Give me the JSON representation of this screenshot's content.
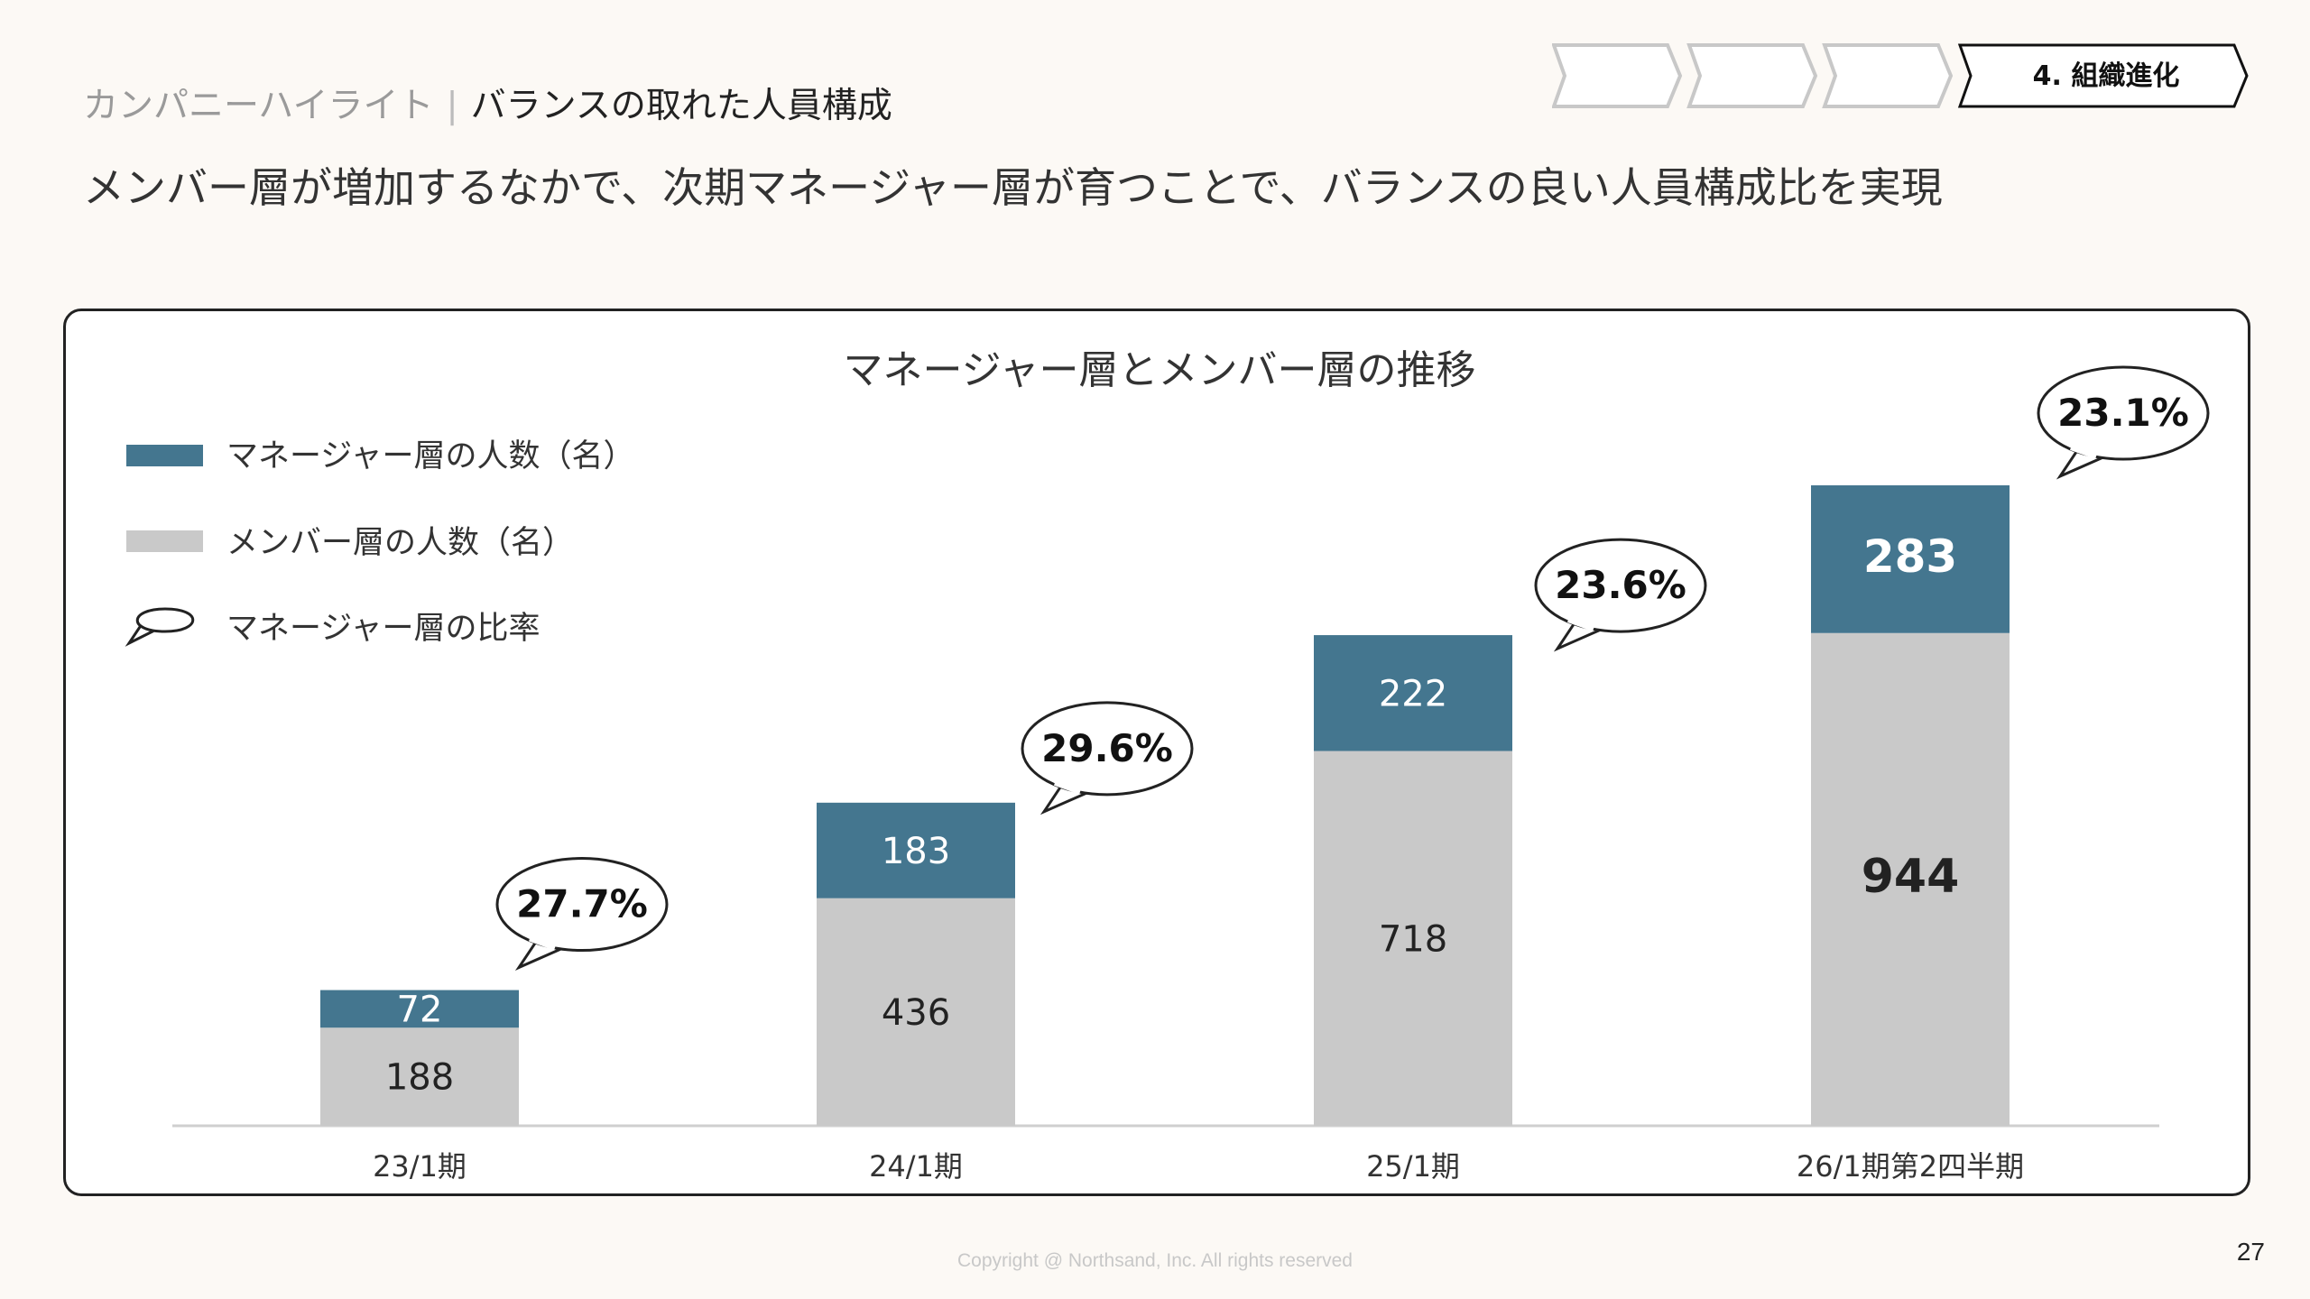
{
  "header": {
    "section": "カンパニーハイライト",
    "separator": "|",
    "current": "バランスの取れた人員構成",
    "headline": "メンバー層が増加するなかで、次期マネージャー層が育つことで、バランスの良い人員構成比を実現"
  },
  "steps": [
    {
      "label": "",
      "active": false
    },
    {
      "label": "",
      "active": false
    },
    {
      "label": "",
      "active": false
    },
    {
      "label": "4. 組織進化",
      "active": true
    }
  ],
  "chart_data": {
    "type": "bar",
    "stacked": true,
    "title": "マネージャー層とメンバー層の推移",
    "categories": [
      "23/1期",
      "24/1期",
      "25/1期",
      "26/1期第2四半期"
    ],
    "series": [
      {
        "name": "メンバー層の人数（名）",
        "color": "#c9c9c9",
        "values": [
          188,
          436,
          718,
          944
        ]
      },
      {
        "name": "マネージャー層の人数（名）",
        "color": "#44768f",
        "values": [
          72,
          183,
          222,
          283
        ]
      }
    ],
    "ratio": {
      "name": "マネージャー層の比率",
      "values": [
        "27.7%",
        "29.6%",
        "23.6%",
        "23.1%"
      ]
    },
    "legend": "top-left",
    "grid": false,
    "ylim": [
      0,
      1227
    ]
  },
  "footer": {
    "copyright": "Copyright @ Northsand, Inc. All rights reserved",
    "page": "27"
  }
}
